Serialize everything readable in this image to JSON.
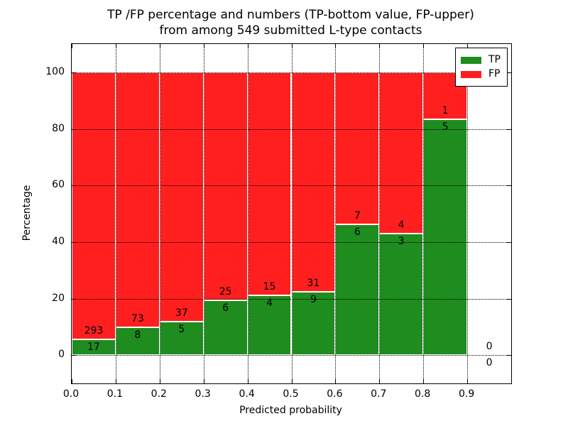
{
  "chart_data": {
    "type": "bar",
    "stacked": true,
    "title": "TP /FP percentage and numbers (TP-bottom value, FP-upper)\nfrom among 549 submitted L-type contacts",
    "title_lines": [
      "TP /FP percentage and numbers (TP-bottom value, FP-upper)",
      "from among 549 submitted L-type contacts"
    ],
    "xlabel": "Predicted probability",
    "ylabel": "Percentage",
    "xlim": [
      0.0,
      1.0
    ],
    "ylim": [
      -10,
      110
    ],
    "bar_width": 0.1,
    "grid": true,
    "xticks": [
      0.0,
      0.1,
      0.2,
      0.3,
      0.4,
      0.5,
      0.6,
      0.7,
      0.8,
      0.9
    ],
    "xtick_labels": [
      "0.0",
      "0.1",
      "0.2",
      "0.3",
      "0.4",
      "0.5",
      "0.6",
      "0.7",
      "0.8",
      "0.9"
    ],
    "yticks": [
      0,
      20,
      40,
      60,
      80,
      100
    ],
    "ytick_labels": [
      "0",
      "20",
      "40",
      "60",
      "80",
      "100"
    ],
    "colors": {
      "tp": "#1e8c1e",
      "fp": "#ff1f1f",
      "bar_edge": "#ffffff",
      "grid": "#000000"
    },
    "legend": {
      "position": "upper right",
      "entries": [
        {
          "label": "TP",
          "color": "#1e8c1e"
        },
        {
          "label": "FP",
          "color": "#ff1f1f"
        }
      ]
    },
    "total_contacts": 549,
    "bins": [
      {
        "x_start": 0.0,
        "tp": 17,
        "fp": 293,
        "tp_pct": 5.48
      },
      {
        "x_start": 0.1,
        "tp": 8,
        "fp": 73,
        "tp_pct": 9.88
      },
      {
        "x_start": 0.2,
        "tp": 5,
        "fp": 37,
        "tp_pct": 11.9
      },
      {
        "x_start": 0.3,
        "tp": 6,
        "fp": 25,
        "tp_pct": 19.35
      },
      {
        "x_start": 0.4,
        "tp": 4,
        "fp": 15,
        "tp_pct": 21.05
      },
      {
        "x_start": 0.5,
        "tp": 9,
        "fp": 31,
        "tp_pct": 22.5
      },
      {
        "x_start": 0.6,
        "tp": 6,
        "fp": 7,
        "tp_pct": 46.15
      },
      {
        "x_start": 0.7,
        "tp": 3,
        "fp": 4,
        "tp_pct": 42.86
      },
      {
        "x_start": 0.8,
        "tp": 5,
        "fp": 1,
        "tp_pct": 83.33
      },
      {
        "x_start": 0.9,
        "tp": 0,
        "fp": 0,
        "tp_pct": 0
      }
    ]
  }
}
